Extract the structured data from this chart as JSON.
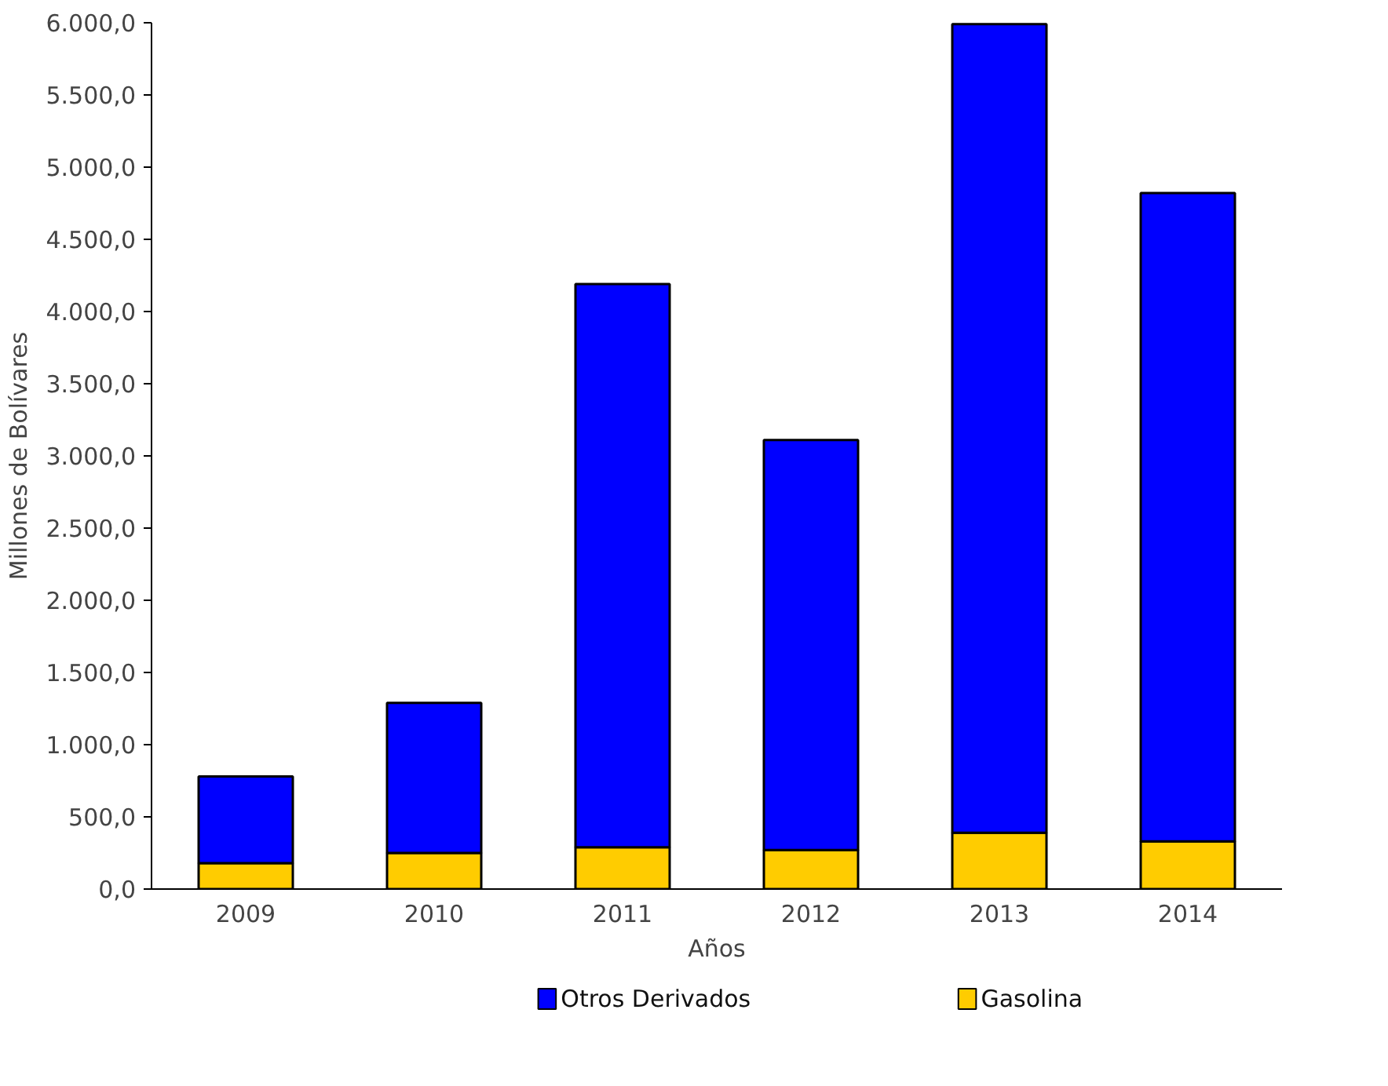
{
  "chart_data": {
    "type": "bar",
    "stacked": true,
    "xlabel": "Años",
    "ylabel": "Millones de Bolívares",
    "categories": [
      "2009",
      "2010",
      "2011",
      "2012",
      "2013",
      "2014"
    ],
    "series": [
      {
        "name": "Gasolina",
        "color": "#ffcc00",
        "values": [
          180,
          250,
          290,
          270,
          390,
          330
        ]
      },
      {
        "name": "Otros Derivados",
        "color": "#0000ff",
        "values": [
          600,
          1040,
          3900,
          2840,
          5600,
          4490
        ]
      }
    ],
    "ylim": [
      0,
      6000
    ],
    "yticks": [
      {
        "value": 0,
        "label": "0,0"
      },
      {
        "value": 500,
        "label": "500,0"
      },
      {
        "value": 1000,
        "label": "1.000,0"
      },
      {
        "value": 1500,
        "label": "1.500,0"
      },
      {
        "value": 2000,
        "label": "2.000,0"
      },
      {
        "value": 2500,
        "label": "2.500,0"
      },
      {
        "value": 3000,
        "label": "3.000,0"
      },
      {
        "value": 3500,
        "label": "3.500,0"
      },
      {
        "value": 4000,
        "label": "4.000,0"
      },
      {
        "value": 4500,
        "label": "4.500,0"
      },
      {
        "value": 5000,
        "label": "5.000,0"
      },
      {
        "value": 5500,
        "label": "5.500,0"
      },
      {
        "value": 6000,
        "label": "6.000,0"
      }
    ],
    "grid": false,
    "legend": "bottom"
  }
}
